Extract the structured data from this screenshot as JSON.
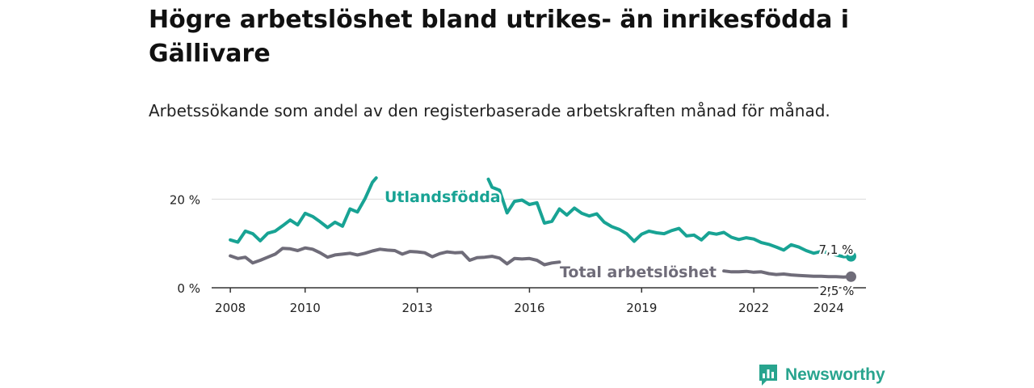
{
  "title": "Högre arbetslöshet bland utrikes- än inrikesfödda i Gällivare",
  "subtitle": "Arbetssökande som andel av den registerbaserade arbetskraften månad för månad.",
  "brand": "Newsworthy",
  "colors": {
    "accent": "#18a394",
    "gray": "#6f6c79",
    "brand": "#28a48e"
  },
  "chart_data": {
    "type": "line",
    "x_unit": "year",
    "xlim": [
      2007.5,
      2025.0
    ],
    "ylim": [
      0,
      25
    ],
    "y_ticks": [
      0,
      20
    ],
    "y_tick_labels": [
      "0 %",
      "20 %"
    ],
    "x_ticks": [
      2008,
      2010,
      2013,
      2016,
      2019,
      2022,
      2024
    ],
    "grid": true,
    "series": [
      {
        "name": "Utlandsfödda",
        "color": "#18a394",
        "end_label": "7,1 %",
        "points": [
          [
            2008.0,
            10.8
          ],
          [
            2008.2,
            10.3
          ],
          [
            2008.4,
            12.8
          ],
          [
            2008.6,
            12.2
          ],
          [
            2008.8,
            10.6
          ],
          [
            2009.0,
            12.3
          ],
          [
            2009.2,
            12.8
          ],
          [
            2009.4,
            14.0
          ],
          [
            2009.6,
            15.3
          ],
          [
            2009.8,
            14.2
          ],
          [
            2010.0,
            16.8
          ],
          [
            2010.2,
            16.1
          ],
          [
            2010.4,
            14.9
          ],
          [
            2010.6,
            13.6
          ],
          [
            2010.8,
            14.8
          ],
          [
            2011.0,
            13.9
          ],
          [
            2011.2,
            17.8
          ],
          [
            2011.4,
            17.1
          ],
          [
            2011.6,
            20.1
          ],
          [
            2011.8,
            23.8
          ],
          [
            2011.9,
            24.8
          ],
          [
            2014.9,
            24.5
          ],
          [
            2015.0,
            22.7
          ],
          [
            2015.2,
            22.0
          ],
          [
            2015.4,
            16.9
          ],
          [
            2015.6,
            19.5
          ],
          [
            2015.8,
            19.8
          ],
          [
            2016.0,
            18.8
          ],
          [
            2016.2,
            19.2
          ],
          [
            2016.4,
            14.6
          ],
          [
            2016.6,
            15.0
          ],
          [
            2016.8,
            17.8
          ],
          [
            2017.0,
            16.4
          ],
          [
            2017.2,
            18.0
          ],
          [
            2017.4,
            16.8
          ],
          [
            2017.6,
            16.2
          ],
          [
            2017.8,
            16.7
          ],
          [
            2018.0,
            14.8
          ],
          [
            2018.2,
            13.8
          ],
          [
            2018.4,
            13.2
          ],
          [
            2018.6,
            12.2
          ],
          [
            2018.8,
            10.5
          ],
          [
            2019.0,
            12.1
          ],
          [
            2019.2,
            12.8
          ],
          [
            2019.4,
            12.4
          ],
          [
            2019.6,
            12.2
          ],
          [
            2019.8,
            12.9
          ],
          [
            2020.0,
            13.4
          ],
          [
            2020.2,
            11.7
          ],
          [
            2020.4,
            11.9
          ],
          [
            2020.6,
            10.8
          ],
          [
            2020.8,
            12.4
          ],
          [
            2021.0,
            12.1
          ],
          [
            2021.2,
            12.5
          ],
          [
            2021.4,
            11.4
          ],
          [
            2021.6,
            10.9
          ],
          [
            2021.8,
            11.3
          ],
          [
            2022.0,
            11.0
          ],
          [
            2022.2,
            10.2
          ],
          [
            2022.4,
            9.8
          ],
          [
            2022.6,
            9.2
          ],
          [
            2022.8,
            8.5
          ],
          [
            2023.0,
            9.7
          ],
          [
            2023.2,
            9.2
          ],
          [
            2023.4,
            8.4
          ],
          [
            2023.6,
            7.8
          ],
          [
            2023.8,
            8.2
          ],
          [
            2024.0,
            7.9
          ],
          [
            2024.2,
            7.4
          ],
          [
            2024.4,
            7.0
          ],
          [
            2024.6,
            7.1
          ]
        ]
      },
      {
        "name": "Total arbetslöshet",
        "color": "#6f6c79",
        "end_label": "2,5 %",
        "points": [
          [
            2008.0,
            7.2
          ],
          [
            2008.2,
            6.6
          ],
          [
            2008.4,
            6.9
          ],
          [
            2008.6,
            5.6
          ],
          [
            2008.8,
            6.2
          ],
          [
            2009.0,
            6.9
          ],
          [
            2009.2,
            7.6
          ],
          [
            2009.4,
            8.9
          ],
          [
            2009.6,
            8.8
          ],
          [
            2009.8,
            8.4
          ],
          [
            2010.0,
            9.0
          ],
          [
            2010.2,
            8.7
          ],
          [
            2010.4,
            7.9
          ],
          [
            2010.6,
            6.9
          ],
          [
            2010.8,
            7.4
          ],
          [
            2011.0,
            7.6
          ],
          [
            2011.2,
            7.8
          ],
          [
            2011.4,
            7.4
          ],
          [
            2011.6,
            7.8
          ],
          [
            2011.8,
            8.3
          ],
          [
            2012.0,
            8.7
          ],
          [
            2012.2,
            8.5
          ],
          [
            2012.4,
            8.4
          ],
          [
            2012.6,
            7.6
          ],
          [
            2012.8,
            8.2
          ],
          [
            2013.0,
            8.1
          ],
          [
            2013.2,
            7.9
          ],
          [
            2013.4,
            7.0
          ],
          [
            2013.6,
            7.7
          ],
          [
            2013.8,
            8.1
          ],
          [
            2014.0,
            7.9
          ],
          [
            2014.2,
            8.0
          ],
          [
            2014.4,
            6.2
          ],
          [
            2014.6,
            6.8
          ],
          [
            2014.8,
            6.9
          ],
          [
            2015.0,
            7.1
          ],
          [
            2015.2,
            6.7
          ],
          [
            2015.4,
            5.4
          ],
          [
            2015.6,
            6.6
          ],
          [
            2015.8,
            6.5
          ],
          [
            2016.0,
            6.6
          ],
          [
            2016.2,
            6.2
          ],
          [
            2016.4,
            5.2
          ],
          [
            2016.6,
            5.6
          ],
          [
            2016.8,
            5.8
          ],
          [
            2021.2,
            3.8
          ],
          [
            2021.4,
            3.6
          ],
          [
            2021.6,
            3.6
          ],
          [
            2021.8,
            3.7
          ],
          [
            2022.0,
            3.5
          ],
          [
            2022.2,
            3.6
          ],
          [
            2022.4,
            3.2
          ],
          [
            2022.6,
            3.0
          ],
          [
            2022.8,
            3.1
          ],
          [
            2023.0,
            2.9
          ],
          [
            2023.2,
            2.8
          ],
          [
            2023.4,
            2.7
          ],
          [
            2023.6,
            2.6
          ],
          [
            2023.8,
            2.6
          ],
          [
            2024.0,
            2.5
          ],
          [
            2024.2,
            2.5
          ],
          [
            2024.4,
            2.4
          ],
          [
            2024.6,
            2.5
          ]
        ]
      }
    ]
  }
}
